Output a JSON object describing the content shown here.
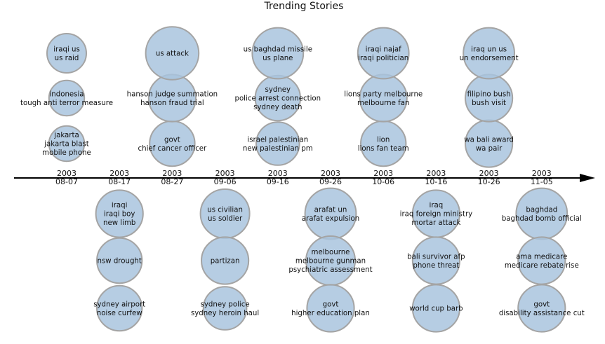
{
  "chart_data": {
    "type": "timeline-bubble",
    "title": "Trending Stories",
    "ticks": [
      [
        "2003",
        "08-07"
      ],
      [
        "2003",
        "08-17"
      ],
      [
        "2003",
        "08-27"
      ],
      [
        "2003",
        "09-06"
      ],
      [
        "2003",
        "09-16"
      ],
      [
        "2003",
        "09-26"
      ],
      [
        "2003",
        "10-06"
      ],
      [
        "2003",
        "10-16"
      ],
      [
        "2003",
        "10-26"
      ],
      [
        "2003",
        "11-05"
      ]
    ],
    "columns": [
      {
        "date": "2003-08-07",
        "side": "above",
        "stories": [
          {
            "lines": [
              "jakarta",
              "jakarta blast",
              "mobile phone"
            ],
            "size": 0.9
          },
          {
            "lines": [
              "indonesia",
              "tough anti terror measure"
            ],
            "size": 0.9
          },
          {
            "lines": [
              "iraqi us",
              "us raid"
            ],
            "size": 1.0
          }
        ]
      },
      {
        "date": "2003-08-17",
        "side": "below",
        "stories": [
          {
            "lines": [
              "iraqi",
              "iraqi boy",
              "new limb"
            ],
            "size": 1.2
          },
          {
            "lines": [
              "nsw drought"
            ],
            "size": 1.15
          },
          {
            "lines": [
              "sydney airport",
              "noise curfew"
            ],
            "size": 1.15
          }
        ]
      },
      {
        "date": "2003-08-27",
        "side": "above",
        "stories": [
          {
            "lines": [
              "govt",
              "chief cancer officer"
            ],
            "size": 1.15
          },
          {
            "lines": [
              "hanson judge summation",
              "hanson fraud trial"
            ],
            "size": 1.2
          },
          {
            "lines": [
              "us attack"
            ],
            "size": 1.35
          }
        ]
      },
      {
        "date": "2003-09-06",
        "side": "below",
        "stories": [
          {
            "lines": [
              "us civilian",
              "us soldier"
            ],
            "size": 1.25
          },
          {
            "lines": [
              "partizan"
            ],
            "size": 1.2
          },
          {
            "lines": [
              "sydney police",
              "sydney heroin haul"
            ],
            "size": 1.1
          }
        ]
      },
      {
        "date": "2003-09-16",
        "side": "above",
        "stories": [
          {
            "lines": [
              "israel palestinian",
              "new palestinian pm"
            ],
            "size": 1.1
          },
          {
            "lines": [
              "sydney",
              "police arrest connection",
              "sydney death"
            ],
            "size": 1.15
          },
          {
            "lines": [
              "us baghdad missile",
              "us plane"
            ],
            "size": 1.3
          }
        ]
      },
      {
        "date": "2003-09-26",
        "side": "below",
        "stories": [
          {
            "lines": [
              "arafat un",
              "arafat expulsion"
            ],
            "size": 1.3
          },
          {
            "lines": [
              "melbourne",
              "melbourne gunman",
              "psychiatric assessment"
            ],
            "size": 1.25
          },
          {
            "lines": [
              "govt",
              "higher education plan"
            ],
            "size": 1.2
          }
        ]
      },
      {
        "date": "2003-10-06",
        "side": "above",
        "stories": [
          {
            "lines": [
              "lion",
              "lions fan team"
            ],
            "size": 1.15
          },
          {
            "lines": [
              "lions party melbourne",
              "melbourne fan"
            ],
            "size": 1.2
          },
          {
            "lines": [
              "iraqi najaf",
              "iraqi politician"
            ],
            "size": 1.3
          }
        ]
      },
      {
        "date": "2003-10-16",
        "side": "below",
        "stories": [
          {
            "lines": [
              "iraq",
              "iraq foreign ministry",
              "mortar attack"
            ],
            "size": 1.2
          },
          {
            "lines": [
              "bali survivor afp",
              "phone threat"
            ],
            "size": 1.2
          },
          {
            "lines": [
              "world cup barb"
            ],
            "size": 1.2
          }
        ]
      },
      {
        "date": "2003-10-26",
        "side": "above",
        "stories": [
          {
            "lines": [
              "wa bali award",
              "wa pair"
            ],
            "size": 1.2
          },
          {
            "lines": [
              "filipino bush",
              "bush visit"
            ],
            "size": 1.2
          },
          {
            "lines": [
              "iraq un us",
              "un endorsement"
            ],
            "size": 1.3
          }
        ]
      },
      {
        "date": "2003-11-05",
        "side": "below",
        "stories": [
          {
            "lines": [
              "baghdad",
              "baghdad bomb official"
            ],
            "size": 1.3
          },
          {
            "lines": [
              "ama medicare",
              "medicare rebate rise"
            ],
            "size": 1.2
          },
          {
            "lines": [
              "govt",
              "disability assistance cut"
            ],
            "size": 1.2
          }
        ]
      }
    ]
  }
}
